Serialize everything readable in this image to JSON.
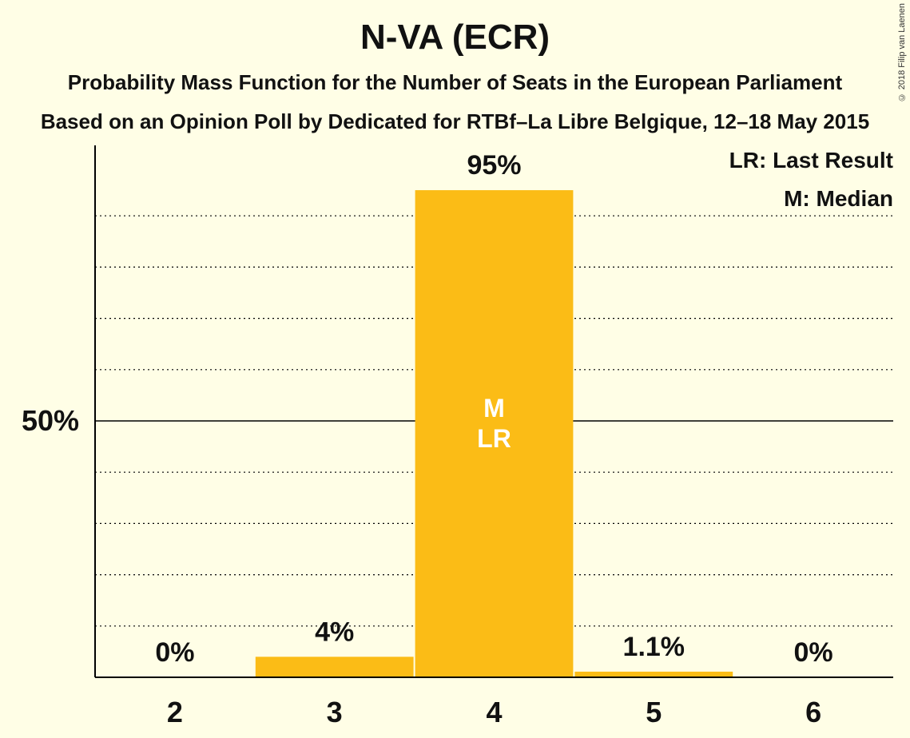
{
  "chart_data": {
    "type": "bar",
    "title": "N-VA (ECR)",
    "subtitle": "Probability Mass Function for the Number of Seats in the European Parliament",
    "subtitle2": "Based on an Opinion Poll by Dedicated for RTBf–La Libre Belgique, 12–18 May 2015",
    "categories": [
      "2",
      "3",
      "4",
      "5",
      "6"
    ],
    "values": [
      0,
      4,
      95,
      1.1,
      0
    ],
    "value_labels": [
      "0%",
      "4%",
      "95%",
      "1.1%",
      "0%"
    ],
    "ylim": [
      0,
      100
    ],
    "y_ticks": [
      {
        "value": 50,
        "label": "50%"
      }
    ],
    "grid": true,
    "grid_step": 10,
    "bar_markers": [
      {
        "category": "4",
        "lines": [
          "M",
          "LR"
        ]
      }
    ],
    "legend": {
      "placement": "top-right",
      "entries": [
        "LR: Last Result",
        "M: Median"
      ]
    },
    "bar_color": "#FBBC16"
  },
  "copyright": "© 2018 Filip van Laenen"
}
